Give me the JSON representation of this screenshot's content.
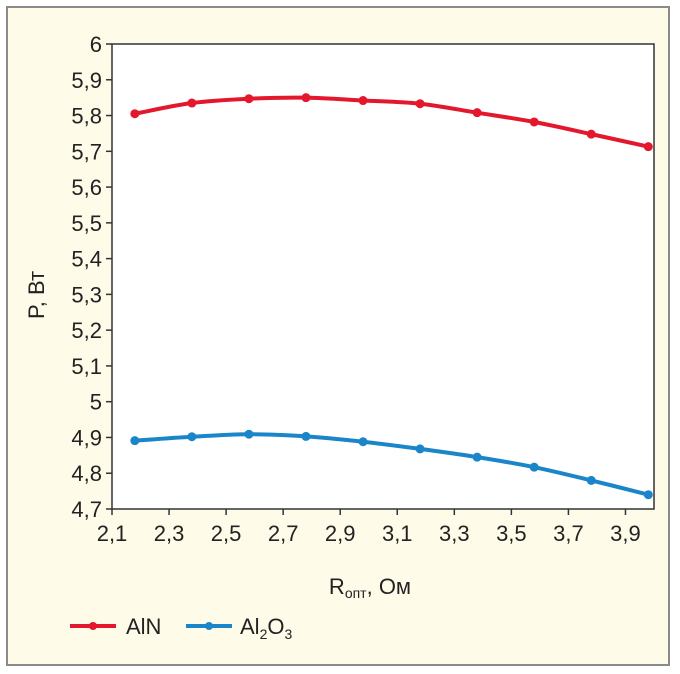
{
  "chart_data": {
    "type": "line",
    "xlabel": {
      "main": "R",
      "sub": "опт",
      "rest": ", Ом"
    },
    "ylabel": "P, Вт",
    "xlim": [
      2.1,
      4.0
    ],
    "ylim": [
      4.7,
      6.0
    ],
    "xticks": [
      "2,1",
      "2,3",
      "2,5",
      "2,7",
      "2,9",
      "3,1",
      "3,3",
      "3,5",
      "3,7",
      "3,9"
    ],
    "xtick_values": [
      2.1,
      2.3,
      2.5,
      2.7,
      2.9,
      3.1,
      3.3,
      3.5,
      3.7,
      3.9
    ],
    "yticks": [
      "4,7",
      "4,8",
      "4,9",
      "5",
      "5,1",
      "5,2",
      "5,3",
      "5,4",
      "5,5",
      "5,6",
      "5,7",
      "5,8",
      "5,9",
      "6"
    ],
    "ytick_values": [
      4.7,
      4.8,
      4.9,
      5.0,
      5.1,
      5.2,
      5.3,
      5.4,
      5.5,
      5.6,
      5.7,
      5.8,
      5.9,
      6.0
    ],
    "x": [
      2.18,
      2.38,
      2.58,
      2.78,
      2.98,
      3.18,
      3.38,
      3.58,
      3.78,
      3.98
    ],
    "series": [
      {
        "name": "AlN",
        "color": "#e3182d",
        "values": [
          5.805,
          5.835,
          5.847,
          5.85,
          5.842,
          5.833,
          5.808,
          5.782,
          5.748,
          5.713
        ]
      },
      {
        "name": "Al2O3",
        "name_parts": {
          "a": "Al",
          "s1": "2",
          "b": "O",
          "s2": "3"
        },
        "color": "#1a86c9",
        "values": [
          4.891,
          4.902,
          4.909,
          4.903,
          4.888,
          4.868,
          4.845,
          4.817,
          4.78,
          4.74
        ]
      }
    ],
    "grid": false,
    "legend_position": "bottom-left"
  }
}
